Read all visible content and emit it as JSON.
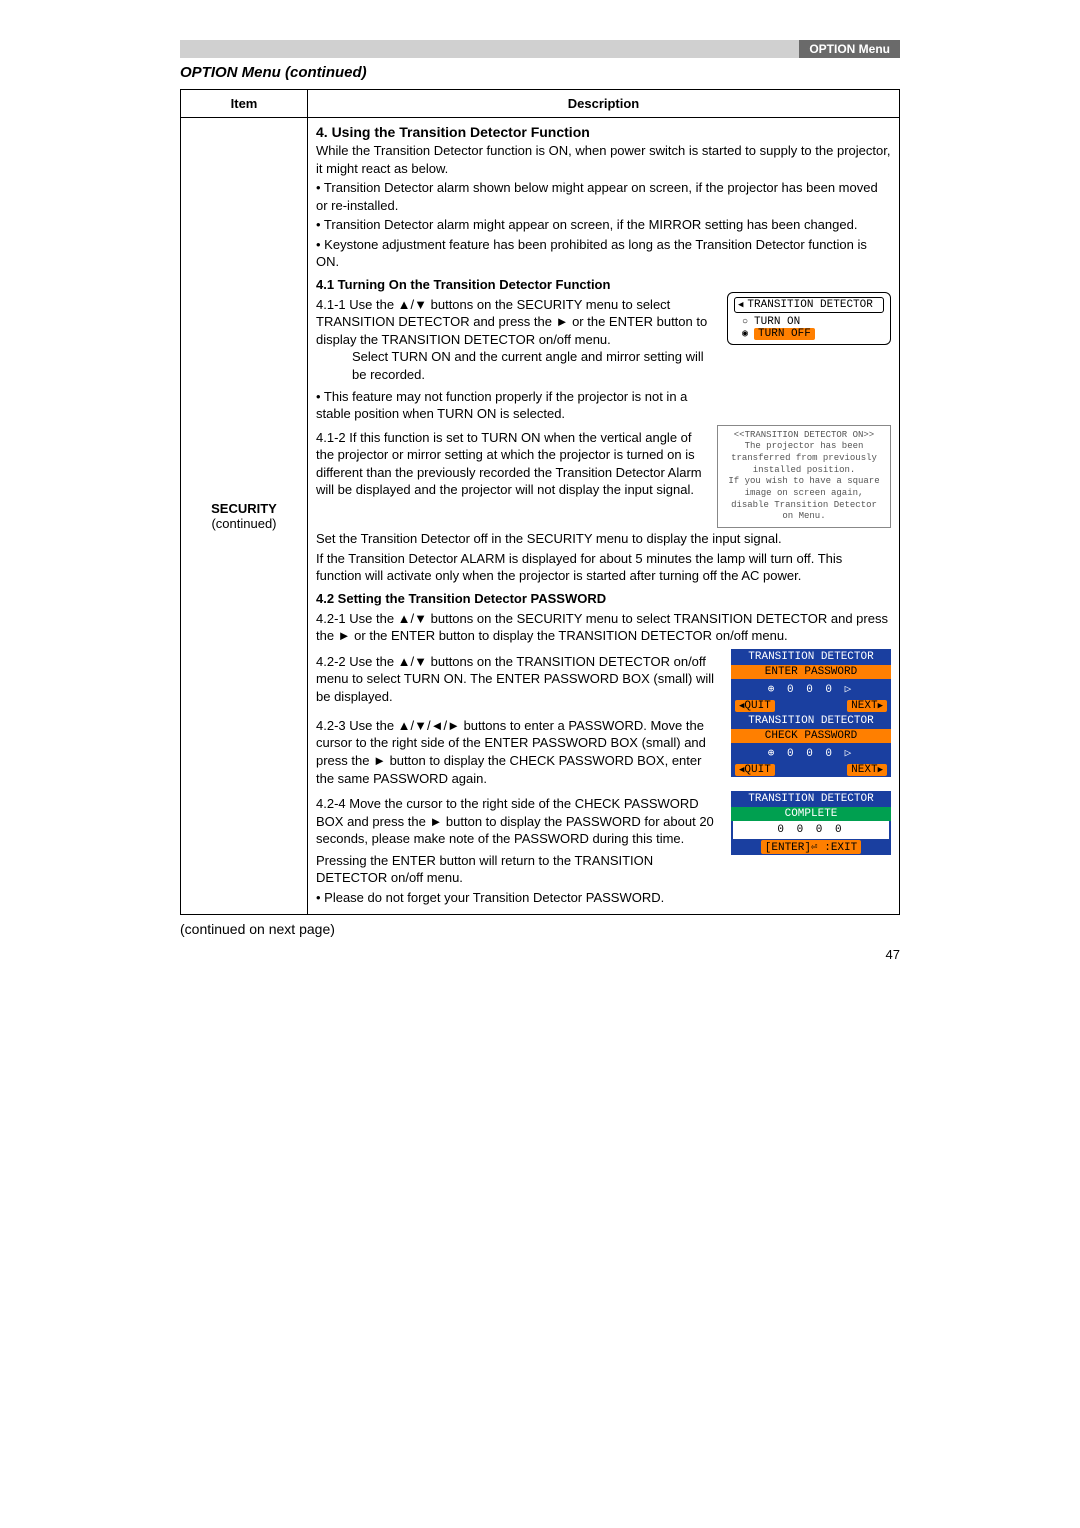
{
  "header_label": "OPTION Menu",
  "section_title": "OPTION Menu (continued)",
  "table": {
    "col_item": "Item",
    "col_desc": "Description",
    "item_label_main": "SECURITY",
    "item_label_sub": "(continued)"
  },
  "content": {
    "h4": "4. Using the Transition Detector Function",
    "p1": "While the Transition Detector function is ON, when power switch is started to supply to the projector, it might react as below.",
    "p2": "• Transition Detector alarm shown below might appear on screen, if the projector has been moved or re-installed.",
    "p3": "• Transition Detector alarm might appear on screen, if the MIRROR setting has been changed.",
    "p4": "• Keystone adjustment feature has been prohibited as long as the Transition Detector function is ON.",
    "h41a": "4.1 Turning On the Transition Detector Function",
    "s411a": "4.1-1 ",
    "s411b": "Use the ▲/▼ buttons on the SECURITY menu to select TRANSITION DETECTOR and press the ► or the ENTER button to display the TRANSITION DETECTOR on/off menu.",
    "s411c": "Select TURN ON and the current angle and mirror setting will be recorded.",
    "s411d": "• This feature may not function properly if the projector is not in a stable position when TURN ON is selected.",
    "s412a": "4.1-2 ",
    "s412b": "If this function is set to TURN ON when the vertical angle of the projector or mirror setting at which the projector is turned on is different than the previously recorded the Transition Detector Alarm will be displayed and the projector will not display the input signal.",
    "pA": "Set the Transition Detector off in the SECURITY menu to display the input signal.",
    "pB": "If the Transition Detector ALARM is displayed for about 5 minutes the lamp will turn off. This function will activate only when the projector is started after turning off the AC power.",
    "h41b": "4.2 Setting the Transition Detector PASSWORD",
    "s421a": "4.2-1 ",
    "s421b": "Use the ▲/▼ buttons on the SECURITY menu to select TRANSITION DETECTOR and press the ► or the ENTER button to display the TRANSITION DETECTOR on/off menu.",
    "s422a": "4.2-2 ",
    "s422b": "Use the ▲/▼ buttons on the TRANSITION DETECTOR on/off menu to select TURN ON. The ENTER PASSWORD BOX (small) will be displayed.",
    "s423a": "4.2-3 ",
    "s423b": "Use the ▲/▼/◄/► buttons to enter a PASSWORD. Move the cursor to the right side of the ENTER PASSWORD BOX (small) and press the ► button to display the CHECK PASSWORD BOX, enter the same PASSWORD again.",
    "s424a": "4.2-4 ",
    "s424b": "Move the cursor to the right side of the CHECK PASSWORD BOX and press the ► button to display the PASSWORD for about 20 seconds, please make note of the PASSWORD during this time.",
    "s424c": "Pressing the ENTER button will return to the TRANSITION DETECTOR on/off menu.",
    "s424d": "• Please do not forget your Transition Detector PASSWORD."
  },
  "osd": {
    "td_title": "TRANSITION DETECTOR",
    "turn_on": "TURN ON",
    "turn_off": "TURN OFF",
    "alarm_title": "<<TRANSITION DETECTOR ON>>",
    "alarm_l1": "The projector has been transferred from previously installed position.",
    "alarm_l2": "If you wish to have a square image on screen again, disable Transition Detector on Menu.",
    "enter_pw": "ENTER PASSWORD",
    "check_pw": "CHECK PASSWORD",
    "complete": "COMPLETE",
    "digits": "0  0  0  0",
    "digits_cur": "0  0  0 ▷",
    "quit": "QUIT",
    "next": "NEXT",
    "enter_exit": "[ENTER]⏎ :EXIT"
  },
  "continued": "(continued on next page)",
  "pagenum": "47"
}
